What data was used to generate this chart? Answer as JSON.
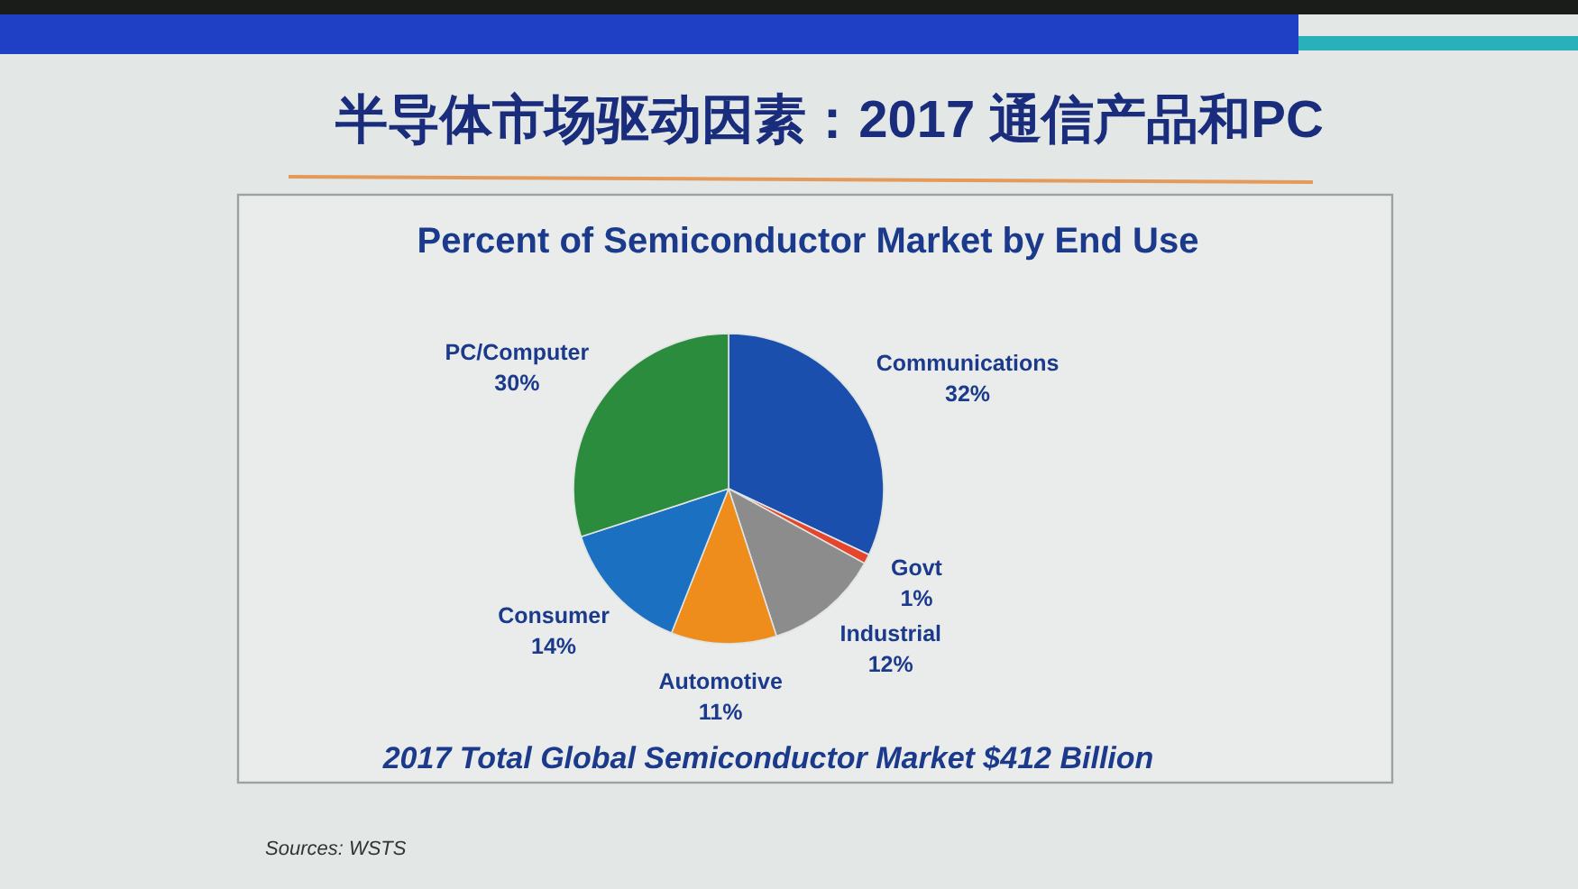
{
  "chart_data": {
    "type": "pie",
    "title": "半导体市场驱动因素：2017 通信产品和PC",
    "subtitle": "Percent of Semiconductor Market by End Use",
    "categories": [
      "Communications",
      "Govt",
      "Industrial",
      "Automotive",
      "Consumer",
      "PC/Computer"
    ],
    "values": [
      32,
      1,
      12,
      11,
      14,
      30
    ],
    "colors": [
      "#1b4fae",
      "#e5462b",
      "#8c8c8c",
      "#ee8c1c",
      "#1c70c2",
      "#2a8c3c"
    ],
    "value_labels": [
      "32%",
      "1%",
      "12%",
      "11%",
      "14%",
      "30%"
    ],
    "annotations": [
      "2017 Total Global Semiconductor Market $412 Billion",
      "Sources: WSTS"
    ]
  }
}
